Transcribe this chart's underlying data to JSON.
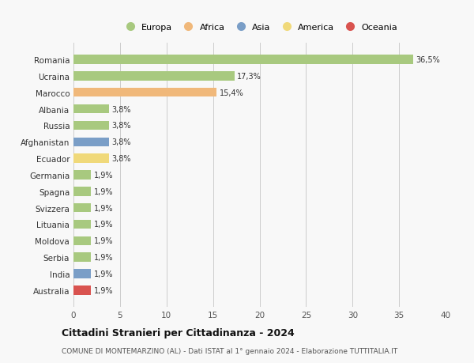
{
  "countries": [
    "Romania",
    "Ucraina",
    "Marocco",
    "Albania",
    "Russia",
    "Afghanistan",
    "Ecuador",
    "Germania",
    "Spagna",
    "Svizzera",
    "Lituania",
    "Moldova",
    "Serbia",
    "India",
    "Australia"
  ],
  "values": [
    36.5,
    17.3,
    15.4,
    3.8,
    3.8,
    3.8,
    3.8,
    1.9,
    1.9,
    1.9,
    1.9,
    1.9,
    1.9,
    1.9,
    1.9
  ],
  "labels": [
    "36,5%",
    "17,3%",
    "15,4%",
    "3,8%",
    "3,8%",
    "3,8%",
    "3,8%",
    "1,9%",
    "1,9%",
    "1,9%",
    "1,9%",
    "1,9%",
    "1,9%",
    "1,9%",
    "1,9%"
  ],
  "colors": [
    "#a8c97f",
    "#a8c97f",
    "#f0b87a",
    "#a8c97f",
    "#a8c97f",
    "#7a9ec7",
    "#f0d97a",
    "#a8c97f",
    "#a8c97f",
    "#a8c97f",
    "#a8c97f",
    "#a8c97f",
    "#a8c97f",
    "#7a9ec7",
    "#d9534f"
  ],
  "legend_labels": [
    "Europa",
    "Africa",
    "Asia",
    "America",
    "Oceania"
  ],
  "legend_colors": [
    "#a8c97f",
    "#f0b87a",
    "#7a9ec7",
    "#f0d97a",
    "#d9534f"
  ],
  "title": "Cittadini Stranieri per Cittadinanza - 2024",
  "subtitle": "COMUNE DI MONTEMARZINO (AL) - Dati ISTAT al 1° gennaio 2024 - Elaborazione TUTTITALIA.IT",
  "xlim": [
    0,
    40
  ],
  "xticks": [
    0,
    5,
    10,
    15,
    20,
    25,
    30,
    35,
    40
  ],
  "background_color": "#f8f8f8",
  "grid_color": "#cccccc",
  "bar_height": 0.55
}
